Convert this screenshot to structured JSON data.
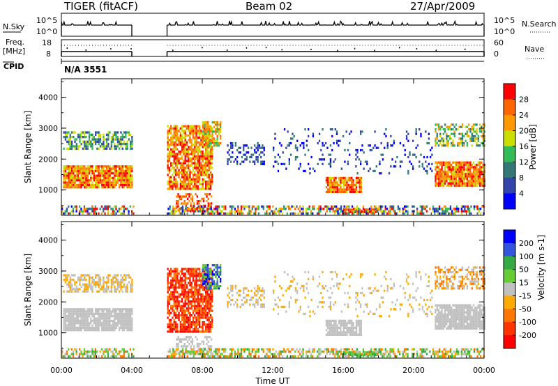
{
  "header": {
    "title": "TIGER (fitACF)",
    "beam": "Beam 02",
    "date": "27/Apr/2009"
  },
  "left_labels": {
    "nsky": "N.Sky",
    "freq": "Freq.",
    "mhz": "[MHz]",
    "cpid": "CPID"
  },
  "right_labels": {
    "nsearch": "N.Search",
    "nave": "Nave"
  },
  "cpid_value": "N/A 3551",
  "chart_data": [
    {
      "type": "line",
      "title": "N.Sky / N.Search",
      "yticks": [
        "10^5",
        "10^0"
      ],
      "gap_hours": [
        4,
        6
      ]
    },
    {
      "type": "line",
      "title": "Freq. / Nave",
      "yticks_left": [
        "18",
        "8"
      ],
      "yticks_right": [
        "60",
        "0"
      ],
      "ylim_left": [
        8,
        18
      ],
      "ylim_right": [
        0,
        60
      ]
    },
    {
      "type": "heatmap",
      "xlabel": "",
      "ylabel": "Slant Range [km]",
      "xlim": [
        0,
        24
      ],
      "ylim": [
        180,
        4600
      ],
      "yticks": [
        "1000",
        "2000",
        "3000",
        "4000"
      ],
      "colorbar_label": "Power [dB]",
      "colorbar_ticks": [
        "28",
        "24",
        "20",
        "16",
        "12",
        "8",
        "4"
      ],
      "colorbar_colors": [
        "#ff0000",
        "#ff6600",
        "#ff9900",
        "#ccdd00",
        "#33bb55",
        "#337777",
        "#3344aa",
        "#0000ff"
      ]
    },
    {
      "type": "heatmap",
      "xlabel": "Time UT",
      "ylabel": "Slant Range [km]",
      "xlim": [
        0,
        24
      ],
      "ylim": [
        180,
        4600
      ],
      "yticks": [
        "1000",
        "2000",
        "3000",
        "4000"
      ],
      "xticks": [
        "00:00",
        "04:00",
        "08:00",
        "12:00",
        "16:00",
        "20:00",
        "00:00"
      ],
      "colorbar_label": "Velocity [m s-1]",
      "colorbar_ticks": [
        "200",
        "100",
        "50",
        "15",
        "-15",
        "-50",
        "-100",
        "-200"
      ],
      "colorbar_colors": [
        "#0000ff",
        "#3355dd",
        "#33aa44",
        "#66cc33",
        "#c0c0c0",
        "#ffaa00",
        "#ff7700",
        "#ff3300",
        "#ff0000"
      ]
    }
  ]
}
